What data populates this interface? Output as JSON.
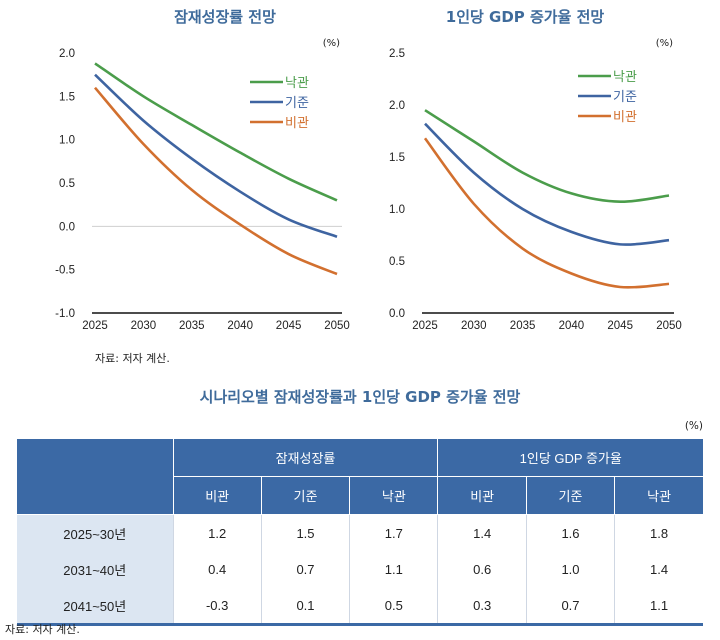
{
  "chart_data": [
    {
      "type": "line",
      "title": "잠재성장률 전망",
      "unit": "(%)",
      "x": [
        2025,
        2030,
        2035,
        2040,
        2045,
        2050
      ],
      "ylim": [
        -1.0,
        2.0
      ],
      "yticks": [
        "2.0",
        "1.5",
        "1.0",
        "0.5",
        "0.0",
        "-0.5",
        "-1.0"
      ],
      "xticks": [
        "2025",
        "2030",
        "2035",
        "2040",
        "2045",
        "2050"
      ],
      "legend_position": "top-right",
      "series": [
        {
          "name": "낙관",
          "color": "#4b9d4b",
          "values": [
            1.88,
            1.5,
            1.17,
            0.85,
            0.55,
            0.3
          ]
        },
        {
          "name": "기준",
          "color": "#3e64a1",
          "values": [
            1.75,
            1.22,
            0.78,
            0.4,
            0.08,
            -0.12
          ]
        },
        {
          "name": "비관",
          "color": "#d2702f",
          "values": [
            1.6,
            0.95,
            0.42,
            0.02,
            -0.32,
            -0.55
          ]
        }
      ]
    },
    {
      "type": "line",
      "title": "1인당 GDP 증가율 전망",
      "unit": "(%)",
      "x": [
        2025,
        2030,
        2035,
        2040,
        2045,
        2050
      ],
      "ylim": [
        0.0,
        2.5
      ],
      "yticks": [
        "2.5",
        "2.0",
        "1.5",
        "1.0",
        "0.5",
        "0.0"
      ],
      "xticks": [
        "2025",
        "2030",
        "2035",
        "2040",
        "2045",
        "2050"
      ],
      "legend_position": "top-right",
      "series": [
        {
          "name": "낙관",
          "color": "#4b9d4b",
          "values": [
            1.95,
            1.65,
            1.35,
            1.15,
            1.07,
            1.13
          ]
        },
        {
          "name": "기준",
          "color": "#3e64a1",
          "values": [
            1.82,
            1.35,
            1.0,
            0.78,
            0.66,
            0.7
          ]
        },
        {
          "name": "비관",
          "color": "#d2702f",
          "values": [
            1.68,
            1.05,
            0.62,
            0.38,
            0.25,
            0.28
          ]
        }
      ]
    }
  ],
  "chart_source": "자료: 저자 계산.",
  "table": {
    "title": "시나리오별 잠재성장률과 1인당 GDP 증가율 전망",
    "unit": "(%)",
    "group_headers": [
      "잠재성장률",
      "1인당 GDP 증가율"
    ],
    "sub_headers": [
      "비관",
      "기준",
      "낙관",
      "비관",
      "기준",
      "낙관"
    ],
    "rows": [
      {
        "label": "2025~30년",
        "values": [
          "1.2",
          "1.5",
          "1.7",
          "1.4",
          "1.6",
          "1.8"
        ]
      },
      {
        "label": "2031~40년",
        "values": [
          "0.4",
          "0.7",
          "1.1",
          "0.6",
          "1.0",
          "1.4"
        ]
      },
      {
        "label": "2041~50년",
        "values": [
          "-0.3",
          "0.1",
          "0.5",
          "0.3",
          "0.7",
          "1.1"
        ]
      }
    ],
    "source": "자료: 저자 계산."
  },
  "colors": {
    "header": "#3b69a5",
    "row_header": "#dce6f2",
    "title": "#3f6b9b"
  }
}
